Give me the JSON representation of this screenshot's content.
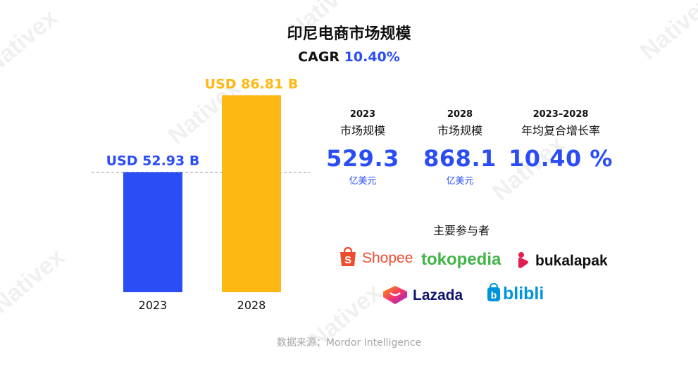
{
  "watermark": "Nativex",
  "header": {
    "title": "印尼电商市场规模",
    "cagr_prefix": "CAGR",
    "cagr_value": "10.40%"
  },
  "chart_data": {
    "type": "bar",
    "categories": [
      "2023",
      "2028"
    ],
    "values": [
      52.93,
      86.81
    ],
    "value_labels": [
      "USD 52.93 B",
      "USD 86.81 B"
    ],
    "colors": [
      "#2a4df5",
      "#fdb813"
    ],
    "ylim": [
      0,
      90
    ],
    "reference_line": {
      "value": 52.93,
      "style": "dashed"
    },
    "title": "",
    "xlabel": "",
    "ylabel": "",
    "grid": false
  },
  "stats": [
    {
      "year": "2023",
      "label": "市场规模",
      "value": "529.3",
      "unit": "亿美元"
    },
    {
      "year": "2028",
      "label": "市场规模",
      "value": "868.1",
      "unit": "亿美元"
    },
    {
      "year": "2023–2028",
      "label": "年均复合增长率",
      "value": "10.40 %",
      "unit": ""
    }
  ],
  "players": {
    "title": "主要参与者",
    "logos": [
      {
        "name": "Shopee",
        "icon": "shopee-bag-icon",
        "color": "#ee4d2d"
      },
      {
        "name": "tokopedia",
        "icon": "",
        "color": "#42b549"
      },
      {
        "name": "bukalapak",
        "icon": "bukalapak-icon",
        "color": "#e31e52"
      },
      {
        "name": "Lazada",
        "icon": "lazada-heart-icon",
        "color": "#0f146d"
      },
      {
        "name": "blibli",
        "icon": "blibli-bag-icon",
        "color": "#0095da"
      }
    ]
  },
  "footer": {
    "source": "数据来源：Mordor Intelligence"
  }
}
